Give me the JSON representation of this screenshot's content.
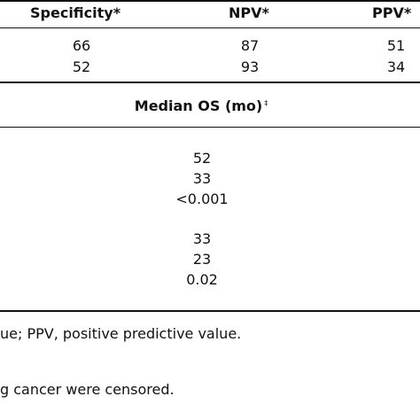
{
  "table1": {
    "headers": {
      "specificity": "Specificity*",
      "npv": "NPV*",
      "ppv": "PPV*"
    },
    "rows": [
      {
        "specificity": "66",
        "npv": "87",
        "ppv": "51"
      },
      {
        "specificity": "52",
        "npv": "93",
        "ppv": "34"
      }
    ]
  },
  "table2": {
    "header": "Median OS (mo)",
    "header_mark": "‡",
    "group1": [
      "52",
      "33",
      "<0.001"
    ],
    "group2": [
      "33",
      "23",
      "0.02"
    ]
  },
  "footnotes": [
    "ue; PPV, positive predictive value.",
    "g cancer were censored."
  ]
}
